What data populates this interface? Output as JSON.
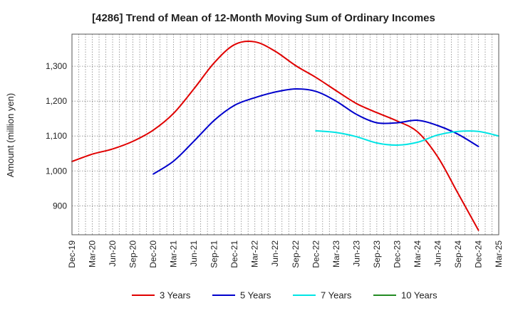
{
  "chart_data": {
    "type": "line",
    "title": "[4286]  Trend of Mean of 12-Month Moving Sum of Ordinary Incomes",
    "xlabel": "",
    "ylabel": "Amount (million yen)",
    "ylim": [
      817,
      1392
    ],
    "y_ticks": [
      900,
      1000,
      1100,
      1200,
      1300
    ],
    "y_tick_labels": [
      "900",
      "1,000",
      "1,100",
      "1,200",
      "1,300"
    ],
    "x_tick_labels": [
      "Dec-19",
      "Mar-20",
      "Jun-20",
      "Sep-20",
      "Dec-20",
      "Mar-21",
      "Jun-21",
      "Sep-21",
      "Dec-21",
      "Mar-22",
      "Jun-22",
      "Sep-22",
      "Dec-22",
      "Mar-23",
      "Jun-23",
      "Sep-23",
      "Dec-23",
      "Mar-24",
      "Jun-24",
      "Sep-24",
      "Dec-24",
      "Mar-25"
    ],
    "grid": true,
    "legend_position": "bottom",
    "series": [
      {
        "name": "3 Years",
        "color": "#e00000",
        "start_index": 0,
        "values": [
          1027,
          1048,
          1063,
          1085,
          1117,
          1165,
          1235,
          1310,
          1362,
          1370,
          1343,
          1302,
          1268,
          1230,
          1193,
          1167,
          1143,
          1112,
          1040,
          935,
          830
        ]
      },
      {
        "name": "5 Years",
        "color": "#0000cc",
        "start_index": 4,
        "values": [
          991,
          1028,
          1085,
          1145,
          1188,
          1210,
          1226,
          1235,
          1228,
          1200,
          1162,
          1138,
          1138,
          1145,
          1130,
          1105,
          1070
        ]
      },
      {
        "name": "7 Years",
        "color": "#00e5e5",
        "start_index": 12,
        "values": [
          1115,
          1110,
          1098,
          1080,
          1074,
          1082,
          1103,
          1113,
          1113,
          1100
        ]
      },
      {
        "name": "10 Years",
        "color": "#228B22",
        "start_index": 0,
        "values": []
      }
    ]
  }
}
